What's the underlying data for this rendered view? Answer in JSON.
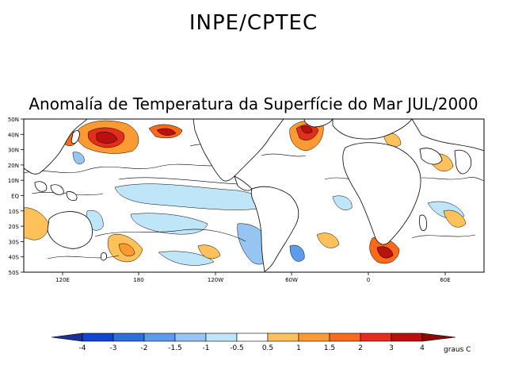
{
  "header": {
    "organization": "INPE/CPTEC"
  },
  "map": {
    "title": "Anomalía de Temperatura da Superfície do Mar JUL/2000",
    "lat_labels": [
      "50N",
      "40N",
      "30N",
      "20N",
      "10N",
      "EQ",
      "10S",
      "20S",
      "30S",
      "40S",
      "50S"
    ],
    "lon_labels": [
      "120E",
      "180",
      "120W",
      "60W",
      "0",
      "60E"
    ]
  },
  "colorbar": {
    "unit": "graus C",
    "levels": [
      "-4",
      "-3",
      "-2",
      "-1.5",
      "-1",
      "-0.5",
      "0.5",
      "1",
      "1.5",
      "2",
      "3",
      "4"
    ],
    "colors": [
      "#1c2f95",
      "#1144cf",
      "#2e6fe0",
      "#5d9cec",
      "#96c4f3",
      "#bfe6f8",
      "#ffffff",
      "#ffc25a",
      "#ff9a32",
      "#fa6a19",
      "#e0301b",
      "#bb1010",
      "#8a0a0a"
    ]
  }
}
